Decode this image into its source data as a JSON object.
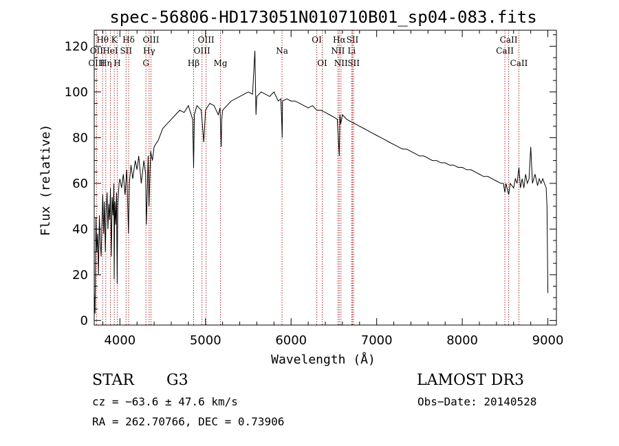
{
  "chart_data": {
    "type": "line",
    "title": "spec-56806-HD173051N010710B01_sp04-083.fits",
    "xlabel": "Wavelength (Å)",
    "ylabel": "Flux (relative)",
    "xlim": [
      3700,
      9100
    ],
    "ylim": [
      -2,
      127
    ],
    "xticks": [
      4000,
      5000,
      6000,
      7000,
      8000,
      9000
    ],
    "yticks": [
      0,
      20,
      40,
      60,
      80,
      100,
      120
    ],
    "series": [
      {
        "name": "flux",
        "x": [
          3700,
          3710,
          3720,
          3730,
          3740,
          3750,
          3760,
          3770,
          3780,
          3790,
          3800,
          3810,
          3820,
          3830,
          3840,
          3850,
          3860,
          3870,
          3880,
          3890,
          3900,
          3910,
          3920,
          3930,
          3933,
          3940,
          3950,
          3960,
          3968,
          3975,
          3990,
          4000,
          4020,
          4040,
          4060,
          4080,
          4100,
          4110,
          4130,
          4150,
          4180,
          4200,
          4220,
          4250,
          4280,
          4300,
          4310,
          4330,
          4340,
          4360,
          4380,
          4400,
          4450,
          4500,
          4550,
          4600,
          4650,
          4700,
          4750,
          4800,
          4850,
          4861,
          4870,
          4900,
          4950,
          4980,
          5000,
          5050,
          5100,
          5150,
          5170,
          5183,
          5190,
          5200,
          5250,
          5300,
          5350,
          5400,
          5450,
          5500,
          5550,
          5577,
          5590,
          5600,
          5650,
          5700,
          5750,
          5800,
          5850,
          5880,
          5890,
          5896,
          5900,
          5950,
          6000,
          6050,
          6100,
          6150,
          6200,
          6250,
          6300,
          6350,
          6400,
          6450,
          6500,
          6540,
          6563,
          6570,
          6580,
          6600,
          6650,
          6700,
          6750,
          6800,
          6850,
          6900,
          6950,
          7000,
          7050,
          7100,
          7150,
          7200,
          7250,
          7300,
          7350,
          7400,
          7450,
          7500,
          7550,
          7600,
          7650,
          7700,
          7750,
          7800,
          7850,
          7900,
          7950,
          8000,
          8050,
          8100,
          8150,
          8200,
          8250,
          8300,
          8350,
          8400,
          8450,
          8480,
          8498,
          8510,
          8542,
          8560,
          8600,
          8620,
          8640,
          8662,
          8680,
          8700,
          8720,
          8740,
          8760,
          8780,
          8800,
          8820,
          8850,
          8880,
          8900,
          8920,
          8940,
          8960,
          8980,
          8990,
          9000
        ],
        "values": [
          12,
          3,
          45,
          30,
          38,
          20,
          46,
          35,
          28,
          42,
          55,
          38,
          52,
          30,
          48,
          56,
          40,
          51,
          44,
          58,
          28,
          54,
          46,
          60,
          18,
          52,
          42,
          56,
          16,
          50,
          60,
          62,
          58,
          64,
          55,
          66,
          38,
          60,
          68,
          62,
          70,
          66,
          72,
          60,
          70,
          64,
          42,
          72,
          50,
          74,
          70,
          76,
          79,
          84,
          86,
          88,
          90,
          92,
          91,
          94,
          88,
          67,
          90,
          94,
          92,
          78,
          92,
          95,
          94,
          90,
          93,
          76,
          88,
          92,
          94,
          96,
          97,
          98,
          99,
          100,
          99,
          118,
          90,
          98,
          100,
          99,
          98,
          100,
          96,
          97,
          88,
          80,
          96,
          97,
          96,
          96,
          95,
          94,
          93,
          94,
          92,
          92,
          91,
          90,
          89,
          88,
          72,
          90,
          86,
          90,
          88,
          87,
          86,
          85,
          84,
          83,
          82,
          81,
          80,
          79,
          78,
          77,
          76,
          75,
          75,
          74,
          73,
          72,
          72,
          71,
          70,
          70,
          69,
          69,
          68,
          68,
          67,
          67,
          66,
          66,
          65,
          64,
          63,
          63,
          62,
          61,
          60,
          60,
          56,
          60,
          55,
          60,
          58,
          62,
          60,
          67,
          58,
          62,
          58,
          64,
          60,
          62,
          76,
          60,
          64,
          59,
          62,
          60,
          62,
          60,
          58,
          50,
          12
        ]
      }
    ],
    "spectral_lines": [
      {
        "name": "Hθ",
        "wavelength": 3798,
        "row": 0
      },
      {
        "name": "OII",
        "wavelength": 3727,
        "row": 1
      },
      {
        "name": "OIII",
        "wavelength": 3727,
        "row": 2
      },
      {
        "name": "K",
        "wavelength": 3934,
        "row": 0
      },
      {
        "name": "HeI",
        "wavelength": 3889,
        "row": 1
      },
      {
        "name": "Hη",
        "wavelength": 3835,
        "row": 2
      },
      {
        "name": "Hδ",
        "wavelength": 4102,
        "row": 0
      },
      {
        "name": "SII",
        "wavelength": 4072,
        "row": 1
      },
      {
        "name": "H",
        "wavelength": 3969,
        "row": 2
      },
      {
        "name": "OIII",
        "wavelength": 4363,
        "row": 0
      },
      {
        "name": "Hγ",
        "wavelength": 4341,
        "row": 1
      },
      {
        "name": "G",
        "wavelength": 4304,
        "row": 2
      },
      {
        "name": "OIII",
        "wavelength": 5007,
        "row": 0
      },
      {
        "name": "OIII",
        "wavelength": 4959,
        "row": 1
      },
      {
        "name": "Hβ",
        "wavelength": 4861,
        "row": 2
      },
      {
        "name": "Mg",
        "wavelength": 5175,
        "row": 2
      },
      {
        "name": "Na",
        "wavelength": 5894,
        "row": 1
      },
      {
        "name": "OI",
        "wavelength": 6300,
        "row": 0
      },
      {
        "name": "OI",
        "wavelength": 6364,
        "row": 2
      },
      {
        "name": "Hα",
        "wavelength": 6563,
        "row": 0
      },
      {
        "name": "SII",
        "wavelength": 6717,
        "row": 0
      },
      {
        "name": "NII",
        "wavelength": 6548,
        "row": 1
      },
      {
        "name": "Li",
        "wavelength": 6708,
        "row": 1
      },
      {
        "name": "NII",
        "wavelength": 6583,
        "row": 2
      },
      {
        "name": "SII",
        "wavelength": 6731,
        "row": 2
      },
      {
        "name": "CaII",
        "wavelength": 8542,
        "row": 0
      },
      {
        "name": "CaII",
        "wavelength": 8498,
        "row": 1
      },
      {
        "name": "CaII",
        "wavelength": 8662,
        "row": 2
      }
    ]
  },
  "info": {
    "object_class": "STAR",
    "subclass": "G3",
    "survey": "LAMOST DR3",
    "redshift": "cz = −63.6 ± 47.6 km/s",
    "obs_date": "Obs−Date: 20140528",
    "coords": "RA = 262.70766, DEC =    0.73906"
  },
  "colors": {
    "line_marker": "#b22222",
    "spectrum": "#000000",
    "axes": "#000000"
  }
}
